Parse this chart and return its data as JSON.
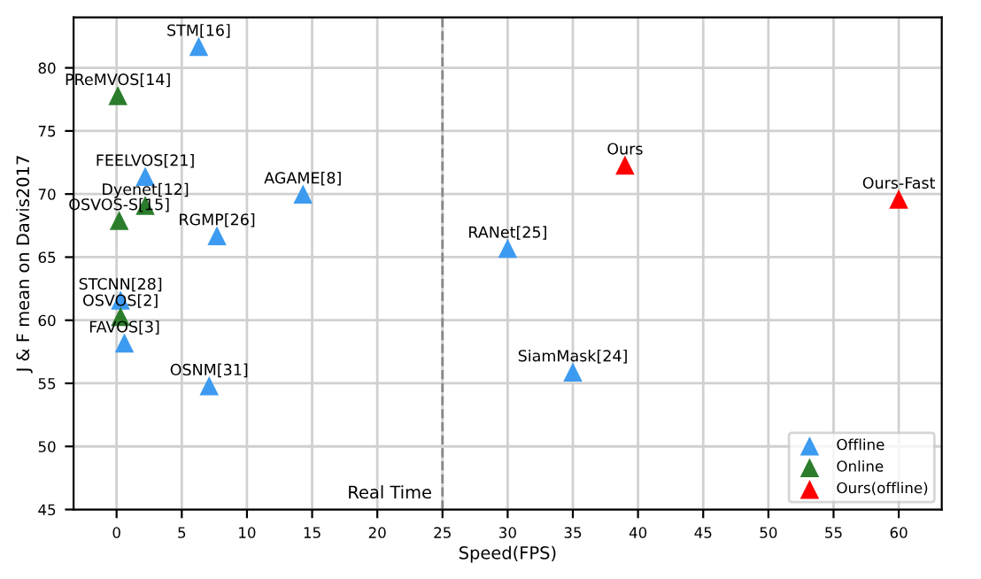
{
  "chart_data": {
    "type": "scatter",
    "xlabel": "Speed(FPS)",
    "ylabel": "J & F mean on Davis2017",
    "xlim": [
      -3.3,
      63.3
    ],
    "ylim": [
      45,
      84
    ],
    "xticks": [
      0,
      5,
      10,
      15,
      20,
      25,
      30,
      35,
      40,
      45,
      50,
      55,
      60
    ],
    "yticks": [
      45,
      50,
      55,
      60,
      65,
      70,
      75,
      80
    ],
    "grid": true,
    "legend": "bottom right",
    "marker": "triangle",
    "series": [
      {
        "name": "Offline",
        "color": "#3c9bf0",
        "x": [
          6.3,
          2.2,
          14.3,
          7.7,
          0.3,
          0.6,
          7.1,
          30,
          35
        ],
        "values": [
          81.7,
          71.4,
          70.0,
          66.7,
          61.6,
          58.2,
          54.8,
          65.7,
          55.9
        ]
      },
      {
        "name": "Online",
        "color": "#2b7d2b",
        "x": [
          0.1,
          2.2,
          0.2,
          0.3
        ],
        "values": [
          77.8,
          69.1,
          67.9,
          60.3
        ]
      },
      {
        "name": "Ours(offline)",
        "color": "#ff0000",
        "x": [
          39,
          60
        ],
        "values": [
          72.3,
          69.6
        ]
      }
    ],
    "ref_lines": [
      {
        "axis": "x",
        "value": 25,
        "label": "Real Time",
        "color": "#888888",
        "line_style": "dashed"
      }
    ],
    "annotations": [
      {
        "text": "STM[16]",
        "x": 6.3,
        "y": 81.7
      },
      {
        "text": "FEELVOS[21]",
        "x": 2.2,
        "y": 71.4
      },
      {
        "text": "AGAME[8]",
        "x": 14.3,
        "y": 70.0
      },
      {
        "text": "RGMP[26]",
        "x": 7.7,
        "y": 66.7
      },
      {
        "text": "STCNN[28]",
        "x": 0.3,
        "y": 61.6
      },
      {
        "text": "FAVOS[3]",
        "x": 0.6,
        "y": 58.2
      },
      {
        "text": "OSNM[31]",
        "x": 7.1,
        "y": 54.8
      },
      {
        "text": "RANet[25]",
        "x": 30,
        "y": 65.7
      },
      {
        "text": "SiamMask[24]",
        "x": 35,
        "y": 55.9
      },
      {
        "text": "PReMVOS[14]",
        "x": 0.1,
        "y": 77.8
      },
      {
        "text": "Dyenet[12]",
        "x": 2.2,
        "y": 69.1
      },
      {
        "text": "OSVOS-S[15]",
        "x": 0.2,
        "y": 67.9
      },
      {
        "text": "OSVOS[2]",
        "x": 0.3,
        "y": 60.3
      },
      {
        "text": "Ours",
        "x": 39,
        "y": 72.3
      },
      {
        "text": "Ours-Fast",
        "x": 60,
        "y": 69.6
      }
    ]
  }
}
